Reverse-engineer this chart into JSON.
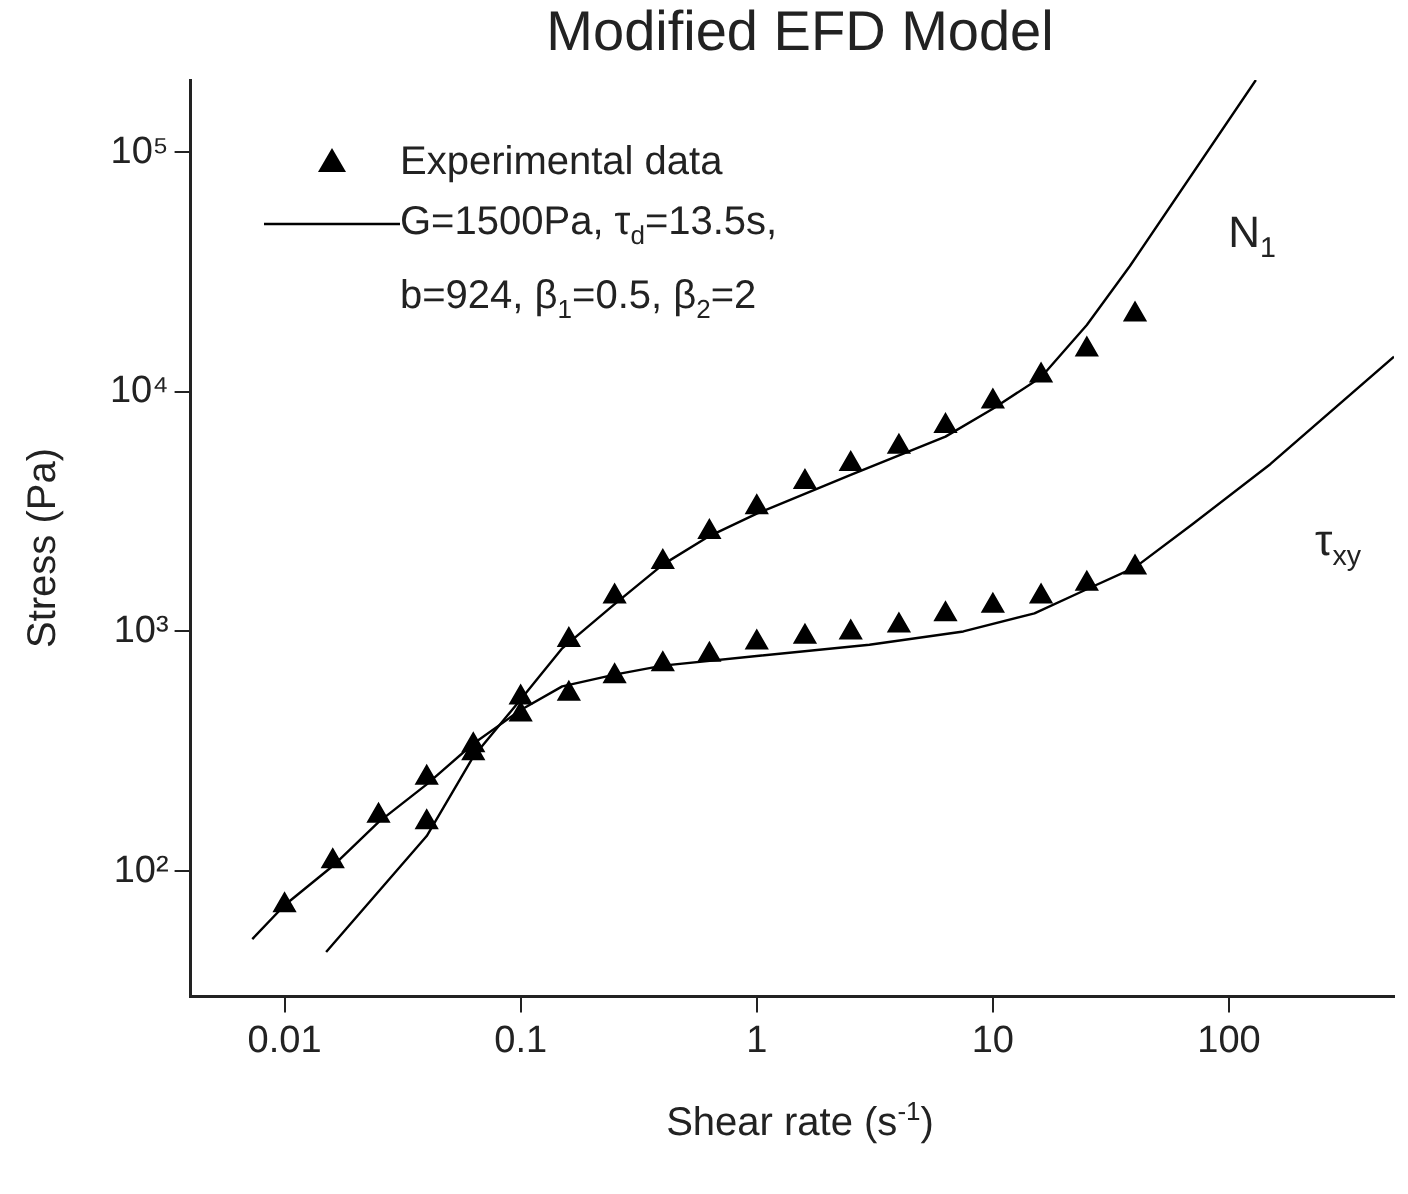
{
  "chart_data": {
    "type": "scatter",
    "title": "Modified EFD Model",
    "xlabel": "Shear rate (s$^{-1}$)",
    "ylabel": "Stress (Pa)",
    "log": "xy",
    "grid": false,
    "legend": "top left",
    "marker": "triangle",
    "xlim": [
      0.004,
      500
    ],
    "xticks": [
      {
        "value": 0.01,
        "label": "0.01"
      },
      {
        "value": 0.1,
        "label": "0.1"
      },
      1,
      10,
      100
    ],
    "ylim": [
      30,
      200000
    ],
    "yticks": [
      {
        "value": 100,
        "label": "10²"
      },
      {
        "value": 1000,
        "label": "10³"
      },
      {
        "value": 10000,
        "label": "10⁴"
      },
      {
        "value": 100000,
        "label": "10⁵"
      }
    ],
    "series": [
      {
        "name": "Experimental data",
        "color": "#000000",
        "x": [
          0.01,
          0.016,
          0.025,
          0.04,
          0.063,
          0.1,
          0.16,
          0.25,
          0.4,
          0.63,
          1,
          1.6,
          2.5,
          4,
          6.3,
          10,
          16,
          25,
          40
        ],
        "values": [
          72,
          110,
          170,
          245,
          335,
          450,
          550,
          650,
          730,
          800,
          900,
          950,
          990,
          1060,
          1180,
          1280,
          1400,
          1580,
          1850
        ]
      },
      {
        "color": "#000000",
        "x": [
          0.04,
          0.063,
          0.1,
          0.16,
          0.25,
          0.4,
          0.63,
          1,
          1.6,
          2.5,
          4,
          6.3,
          10,
          16,
          25,
          40
        ],
        "values": [
          160,
          310,
          530,
          920,
          1400,
          1950,
          2600,
          3300,
          4200,
          5000,
          5900,
          7200,
          9100,
          11700,
          15000,
          21000
        ]
      },
      {
        "type": "line",
        "name": "G=1500Pa, τ$_{d}$=13.5s, b=924, β$_{1}$=0.5, β$_{2}$=2",
        "color": "#000000",
        "marker": "none",
        "line_style": "solid",
        "x": [
          0.0073,
          0.01,
          0.016,
          0.025,
          0.04,
          0.063,
          0.1,
          0.15,
          0.25,
          0.4,
          1,
          3,
          7.5,
          15,
          25,
          40,
          70,
          150,
          500
        ],
        "values": [
          52,
          72,
          105,
          160,
          230,
          340,
          470,
          590,
          660,
          720,
          790,
          880,
          1000,
          1190,
          1500,
          1850,
          2800,
          5000,
          14000
        ]
      },
      {
        "type": "line",
        "color": "#000000",
        "marker": "none",
        "line_style": "solid",
        "x": [
          0.015,
          0.04,
          0.063,
          0.1,
          0.15,
          0.25,
          0.4,
          0.63,
          1,
          2.5,
          6.3,
          10,
          16,
          25,
          38,
          130
        ],
        "values": [
          46,
          140,
          300,
          520,
          850,
          1300,
          1900,
          2500,
          3100,
          4500,
          6500,
          8500,
          11500,
          19000,
          33400,
          200000
        ]
      }
    ],
    "annotations": [
      "N$_{1}$",
      "τ$_{xy}$"
    ]
  }
}
